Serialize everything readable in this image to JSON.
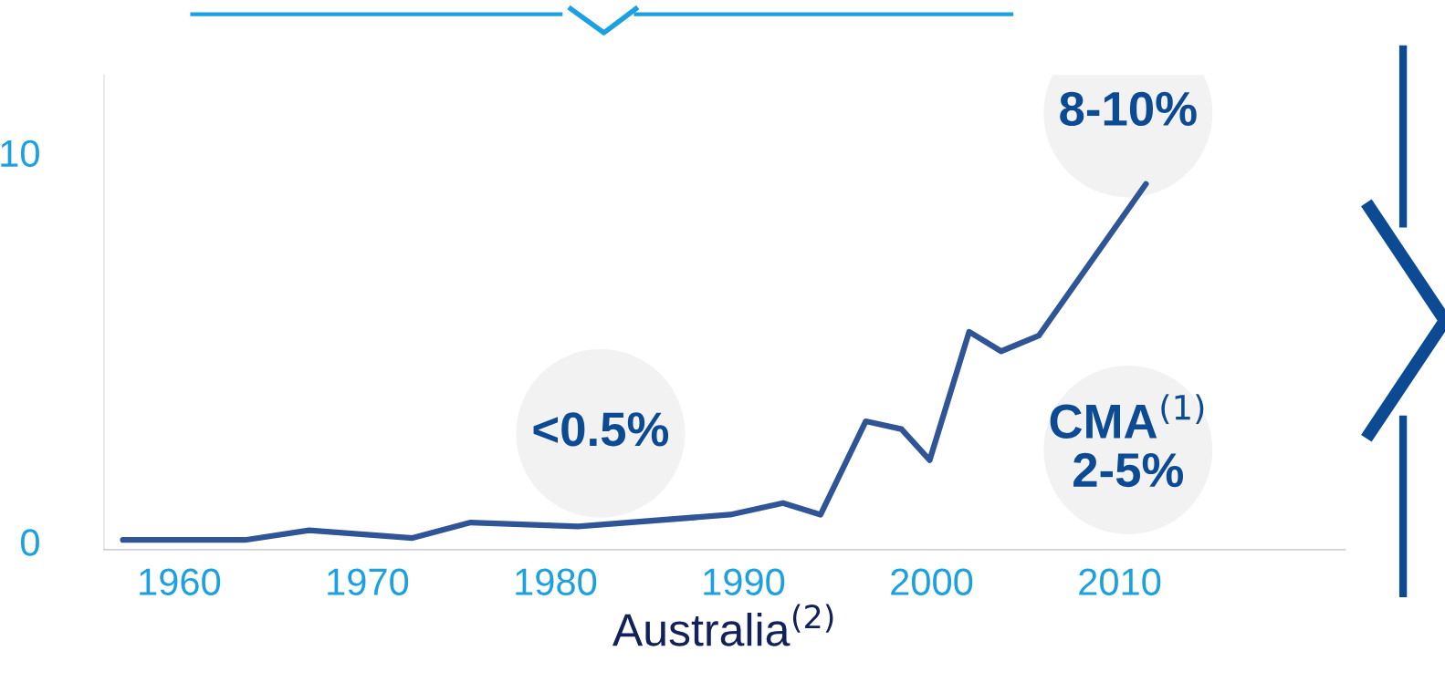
{
  "chart_data": {
    "type": "line",
    "xlabel": "Australia$^{(2)}$",
    "x": [
      1957.0,
      1963.5,
      1966.9,
      1972.4,
      1975.5,
      1981.2,
      1989.3,
      1992.1,
      1994.1,
      1996.5,
      1998.4,
      1999.9,
      2002.0,
      2003.7,
      2005.7,
      2011.4
    ],
    "series": [
      {
        "color": "#2f5597",
        "values": [
          0.05,
          0.05,
          0.3,
          0.1,
          0.5,
          0.4,
          0.7,
          1.0,
          0.7,
          3.1,
          2.9,
          2.1,
          5.4,
          4.9,
          5.3,
          9.2
        ]
      }
    ],
    "xlim": [
      1956,
      2022
    ],
    "xticks": [
      1960,
      1970,
      1980,
      1990,
      2000,
      2010
    ],
    "ylim": [
      -0.2,
      12
    ],
    "yticks": [
      0,
      10
    ],
    "grid": false,
    "marker": "none",
    "line_style": "solid",
    "annotations": [
      "<0.5%",
      "8-10%",
      "CMA$^{(1)}$\n2-5%"
    ]
  }
}
